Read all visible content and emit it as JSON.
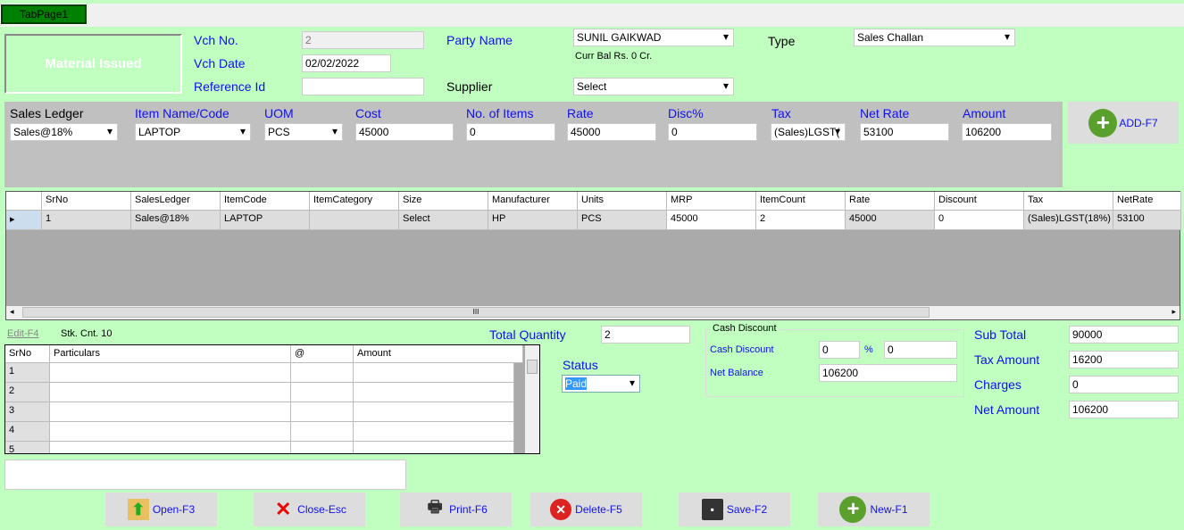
{
  "tab": {
    "label": "TabPage1"
  },
  "title": "Material Issued",
  "header": {
    "vch_no_label": "Vch No.",
    "vch_no": "2",
    "vch_date_label": "Vch Date",
    "vch_date": "02/02/2022",
    "ref_label": "Reference Id",
    "ref": "",
    "party_label": "Party Name",
    "party": "SUNIL GAIKWAD",
    "curr_bal": "Curr Bal Rs. 0 Cr.",
    "supplier_label": "Supplier",
    "supplier": "Select",
    "type_label": "Type",
    "type": "Sales Challan"
  },
  "entry": {
    "sales_ledger_label": "Sales Ledger",
    "sales_ledger": "Sales@18%",
    "item_label": "Item Name/Code",
    "item": "LAPTOP",
    "uom_label": "UOM",
    "uom": "PCS",
    "cost_label": "Cost",
    "cost": "45000",
    "items_label": "No. of Items",
    "items": "0",
    "rate_label": "Rate",
    "rate": "45000",
    "disc_label": "Disc%",
    "disc": "0",
    "tax_label": "Tax",
    "tax": "(Sales)LGST(",
    "netrate_label": "Net Rate",
    "netrate": "53100",
    "amount_label": "Amount",
    "amount": "106200",
    "add_label": "ADD-F7"
  },
  "grid": {
    "columns": [
      "SrNo",
      "SalesLedger",
      "ItemCode",
      "ItemCategory",
      "Size",
      "Manufacturer",
      "Units",
      "MRP",
      "ItemCount",
      "Rate",
      "Discount",
      "Tax",
      "NetRate"
    ],
    "rows": [
      [
        "1",
        "Sales@18%",
        "LAPTOP",
        "",
        "Select",
        "HP",
        "PCS",
        "45000",
        "2",
        "45000",
        "0",
        "(Sales)LGST(18%)",
        "53100"
      ]
    ],
    "scroll_mid": "III"
  },
  "edit_link": "Edit-F4",
  "stock_count": "Stk. Cnt. 10",
  "charges_grid": {
    "columns": [
      "SrNo",
      "Particulars",
      "@",
      "Amount"
    ],
    "rows": [
      "1",
      "2",
      "3",
      "4",
      "5"
    ]
  },
  "totals": {
    "qty_label": "Total Quantity",
    "qty": "2",
    "status_label": "Status",
    "status": "Paid",
    "cash_group": "Cash Discount",
    "cash_label": "Cash Discount",
    "cash_pct": "0",
    "pct_sign": "%",
    "cash_amt": "0",
    "net_bal_label": "Net Balance",
    "net_bal": "106200",
    "sub_label": "Sub Total",
    "sub": "90000",
    "tax_label": "Tax Amount",
    "tax": "16200",
    "charges_label": "Charges",
    "charges": "0",
    "net_label": "Net Amount",
    "net": "106200"
  },
  "buttons": {
    "open": "Open-F3",
    "close": "Close-Esc",
    "print": "Print-F6",
    "delete": "Delete-F5",
    "save": "Save-F2",
    "new": "New-F1"
  }
}
